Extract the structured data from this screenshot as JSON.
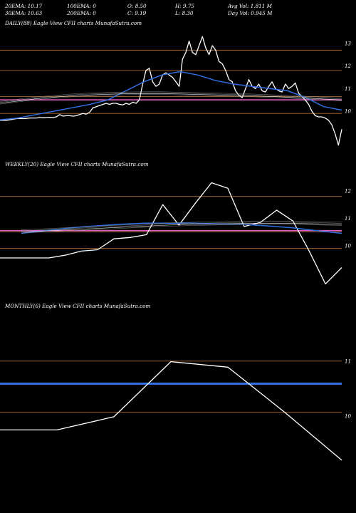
{
  "header": {
    "row1": [
      "20EMA: 10.17",
      "100EMA: 0",
      "O: 8.50",
      "H: 9.75",
      "Avg Vol: 1.811 M"
    ],
    "row2": [
      "30EMA: 10.63",
      "200EMA: 0",
      "C: 9.19",
      "L: 8.30",
      "Day Vol: 0.945 M"
    ]
  },
  "colors": {
    "background": "#000000",
    "price": "#ffffff",
    "ema_blue": "#2f6fe0",
    "support_line": "#b06a2c",
    "pink_line": "#e060c0",
    "avg_light": "#e8e8e8"
  },
  "chart_data": [
    {
      "type": "line",
      "title": "DAILY(88) Eagle  View  CFII charts MunafaSutra.com",
      "y_ticks": [
        "13",
        "12",
        "11",
        "10"
      ],
      "ylim": [
        8.3,
        13.5
      ],
      "h_levels": [
        12.7,
        11.8,
        10.65,
        9.9
      ],
      "pink_level": 10.5,
      "series": [
        {
          "role": "price",
          "values": [
            9.6,
            9.6,
            9.6,
            9.62,
            9.65,
            9.67,
            9.68,
            9.67,
            9.68,
            9.7,
            9.7,
            9.7,
            9.72,
            9.71,
            9.72,
            9.73,
            9.72,
            9.75,
            9.85,
            9.78,
            9.8,
            9.8,
            9.78,
            9.8,
            9.85,
            9.9,
            9.87,
            9.95,
            10.15,
            10.2,
            10.25,
            10.3,
            10.35,
            10.3,
            10.35,
            10.35,
            10.3,
            10.28,
            10.35,
            10.3,
            10.4,
            10.35,
            10.5,
            11.2,
            11.8,
            11.9,
            11.3,
            11.1,
            11.2,
            11.6,
            11.7,
            11.6,
            11.5,
            11.3,
            11.1,
            12.3,
            12.6,
            13.1,
            12.6,
            12.5,
            12.9,
            13.3,
            12.8,
            12.5,
            12.9,
            12.7,
            12.2,
            12.1,
            11.8,
            11.4,
            11.3,
            10.9,
            10.7,
            10.6,
            11.0,
            11.4,
            11.1,
            11.0,
            11.2,
            10.9,
            10.85,
            11.1,
            11.3,
            11.0,
            10.9,
            10.85,
            11.2,
            11.0,
            11.1,
            11.25,
            10.8,
            10.65,
            10.5,
            10.3,
            10.0,
            9.8,
            9.75,
            9.75,
            9.7,
            9.6,
            9.4,
            9.0,
            8.5,
            9.2
          ]
        },
        {
          "role": "ema_blue",
          "values": [
            9.62,
            9.7,
            9.85,
            10.0,
            10.15,
            10.3,
            10.5,
            10.9,
            11.3,
            11.6,
            11.75,
            11.6,
            11.35,
            11.2,
            11.1,
            11.0,
            10.9,
            10.6,
            10.2,
            10.05
          ]
        },
        {
          "role": "avg_light",
          "values": [
            10.35,
            10.45,
            10.55,
            10.62,
            10.68,
            10.72,
            10.75,
            10.77,
            10.78,
            10.78,
            10.76,
            10.74,
            10.72,
            10.7,
            10.68,
            10.65,
            10.62,
            10.58,
            10.54,
            10.5
          ]
        }
      ]
    },
    {
      "type": "line",
      "title": "WEEKLY(20) Eagle  View  CFII charts MunafaSutra.com",
      "y_ticks": [
        "12",
        "11",
        "10"
      ],
      "ylim": [
        8.3,
        12.6
      ],
      "h_levels": [
        11.8,
        10.5,
        9.9
      ],
      "pink_level": 10.55,
      "series": [
        {
          "role": "price",
          "values": [
            9.55,
            9.55,
            9.55,
            9.55,
            9.65,
            9.8,
            9.85,
            10.25,
            10.3,
            10.4,
            11.5,
            10.75,
            11.55,
            12.3,
            12.1,
            10.7,
            10.85,
            11.3,
            10.9,
            9.8,
            8.6,
            9.2
          ]
        },
        {
          "role": "ema_blue",
          "values": [
            10.45,
            10.55,
            10.65,
            10.72,
            10.78,
            10.82,
            10.82,
            10.82,
            10.8,
            10.78,
            10.72,
            10.65,
            10.55,
            10.45
          ]
        },
        {
          "role": "avg_light",
          "values": [
            10.5,
            10.55,
            10.6,
            10.65,
            10.7,
            10.75,
            10.78,
            10.8,
            10.82,
            10.82,
            10.8,
            10.78
          ]
        }
      ]
    },
    {
      "type": "line",
      "title": "MONTHLY(6) Eagle  View  CFII charts MunafaSutra.com",
      "y_ticks": [
        "11",
        "10"
      ],
      "ylim": [
        8.5,
        11.8
      ],
      "h_levels": [
        11.0,
        10.07
      ],
      "blue_level": 10.59,
      "series": [
        {
          "role": "price",
          "values": [
            9.75,
            9.75,
            9.99,
            10.99,
            10.89,
            10.07,
            9.2
          ]
        }
      ]
    }
  ]
}
